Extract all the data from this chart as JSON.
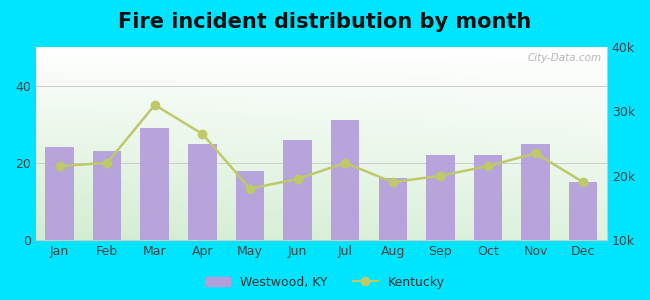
{
  "title": "Fire incident distribution by month",
  "months": [
    "Jan",
    "Feb",
    "Mar",
    "Apr",
    "May",
    "Jun",
    "Jul",
    "Aug",
    "Sep",
    "Oct",
    "Nov",
    "Dec"
  ],
  "westwood_values": [
    24,
    23,
    29,
    25,
    18,
    26,
    31,
    16,
    22,
    22,
    25,
    15
  ],
  "kentucky_values": [
    21500,
    22000,
    31000,
    26500,
    18000,
    19500,
    22000,
    19000,
    20000,
    21500,
    23500,
    19000
  ],
  "bar_color": "#b39ddb",
  "line_color": "#bec96a",
  "line_marker": "o",
  "bg_color_outer": "#00e5ff",
  "bg_top_left": "#d4edda",
  "bg_top_right": "#ffffff",
  "bg_bottom_left": "#c8e6c9",
  "bg_bottom_right": "#e8f5e9",
  "ylim_left": [
    0,
    50
  ],
  "ylim_right": [
    10000,
    40000
  ],
  "yticks_left": [
    0,
    20,
    40
  ],
  "yticks_right": [
    10000,
    20000,
    30000,
    40000
  ],
  "ytick_labels_right": [
    "10k",
    "20k",
    "30k",
    "40k"
  ],
  "legend_label_bar": "Westwood, KY",
  "legend_label_line": "Kentucky",
  "title_fontsize": 15,
  "watermark_text": "City-Data.com"
}
